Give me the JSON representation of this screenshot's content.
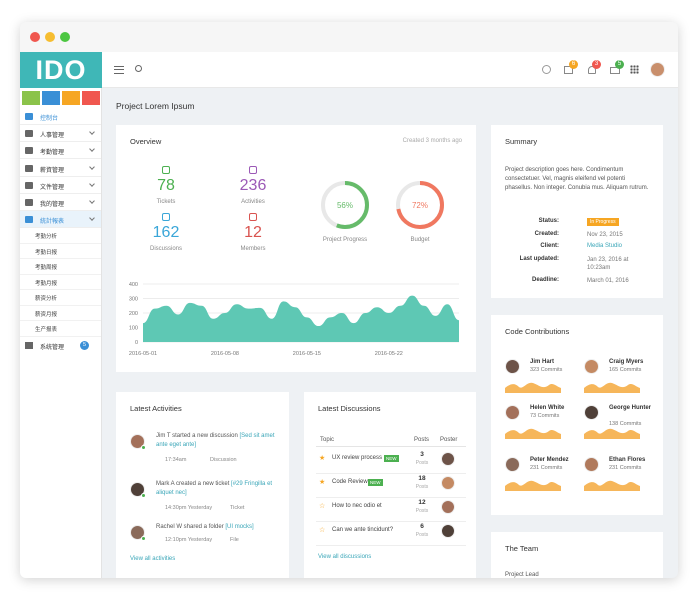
{
  "logo": "IDO",
  "sidebar": {
    "items": [
      "控制台",
      "人事管理",
      "考勤管理",
      "薪資管理",
      "文件管理",
      "我的管理",
      "統計報表"
    ],
    "subitems": [
      "考勤分析",
      "考勤日报",
      "考勤周报",
      "考勤月报",
      "薪资分析",
      "薪资月报",
      "生产报表"
    ],
    "last": "系统管理",
    "badge": "5"
  },
  "header": {
    "notifications": [
      "6",
      "3",
      "5"
    ]
  },
  "page_title": "Project Lorem Ipsum",
  "overview": {
    "title": "Overview",
    "created": "Created 3 months ago",
    "stats": [
      {
        "value": "78",
        "label": "Tickets"
      },
      {
        "value": "236",
        "label": "Activities"
      },
      {
        "value": "162",
        "label": "Discussions"
      },
      {
        "value": "12",
        "label": "Members"
      }
    ],
    "donuts": {
      "values": [
        56,
        72
      ],
      "value_labels": [
        "56%",
        "72%"
      ],
      "labels": [
        "Project Progress",
        "Budget"
      ],
      "colors": [
        "#66bb6a",
        "#f07860"
      ]
    },
    "chart": {
      "type": "area",
      "color": "#5ec8b4",
      "categories": [
        "2016-05-01",
        null,
        null,
        null,
        null,
        null,
        null,
        "2016-05-08",
        null,
        null,
        null,
        null,
        null,
        null,
        "2016-05-15",
        null,
        null,
        null,
        null,
        null,
        null,
        "2016-05-22",
        null,
        null,
        null,
        null,
        null,
        null
      ],
      "values": [
        130,
        230,
        250,
        190,
        270,
        250,
        160,
        200,
        260,
        230,
        235,
        160,
        280,
        240,
        170,
        110,
        170,
        200,
        130,
        200,
        240,
        200,
        250,
        320,
        250,
        180,
        260,
        150
      ],
      "ylim": [
        0,
        400
      ],
      "yticks": [
        0,
        100,
        200,
        300,
        400
      ],
      "grid": true
    }
  },
  "summary": {
    "title": "Summary",
    "description": "Project description goes here. Condimentum consectetuer. Vel, magnis eleifend vel potenti phasellus. Non integer. Conubia mus. Aliquam rutrum.",
    "rows": [
      {
        "label": "Status:",
        "value": "In Progress"
      },
      {
        "label": "Created:",
        "value": "Nov 23, 2015"
      },
      {
        "label": "Client:",
        "value": "Media Studio"
      },
      {
        "label": "Last updated:",
        "value": "Jan 23, 2016 at 10:23am"
      },
      {
        "label": "Deadline:",
        "value": "March 01, 2016"
      }
    ]
  },
  "contributions": {
    "title": "Code Contributions",
    "people": [
      {
        "name": "Jim Hart",
        "commits": "323 Commits"
      },
      {
        "name": "Craig Myers",
        "commits": "165 Commits"
      },
      {
        "name": "Helen White",
        "commits": "73 Commits"
      },
      {
        "name": "George Hunter",
        "commits": "138 Commits"
      },
      {
        "name": "Peter Mendez",
        "commits": "231 Commits"
      },
      {
        "name": "Ethan Flores",
        "commits": "231 Commits"
      }
    ]
  },
  "team": {
    "title": "The Team",
    "role": "Project Lead"
  },
  "activities": {
    "title": "Latest Activities",
    "items": [
      {
        "text": "Jim T started a new discussion",
        "link": "[Sed sit amet ante eget ante]",
        "time": "17:34am",
        "kind": "Discussion"
      },
      {
        "text": "Mark A created a new ticket",
        "link": "[#29 Fringilla et aliquet nec]",
        "time": "14:30pm Yesterday",
        "kind": "Ticket"
      },
      {
        "text": "Rachel W shared a folder",
        "link": "[UI mocks]",
        "time": "12:10pm Yesterday",
        "kind": "File"
      }
    ],
    "more": "View all activities"
  },
  "discussions": {
    "title": "Latest Discussions",
    "columns": [
      "Topic",
      "Posts",
      "Poster"
    ],
    "new": "NEW",
    "posts_unit": "Posts",
    "rows": [
      {
        "topic": "UX review process",
        "posts": "3",
        "isnew": true
      },
      {
        "topic": "Code Review",
        "posts": "18",
        "isnew": true
      },
      {
        "topic": "How to nec odio et",
        "posts": "12",
        "isnew": false
      },
      {
        "topic": "Can we ante tincidunt?",
        "posts": "6",
        "isnew": false
      }
    ],
    "more": "View all discussions"
  }
}
